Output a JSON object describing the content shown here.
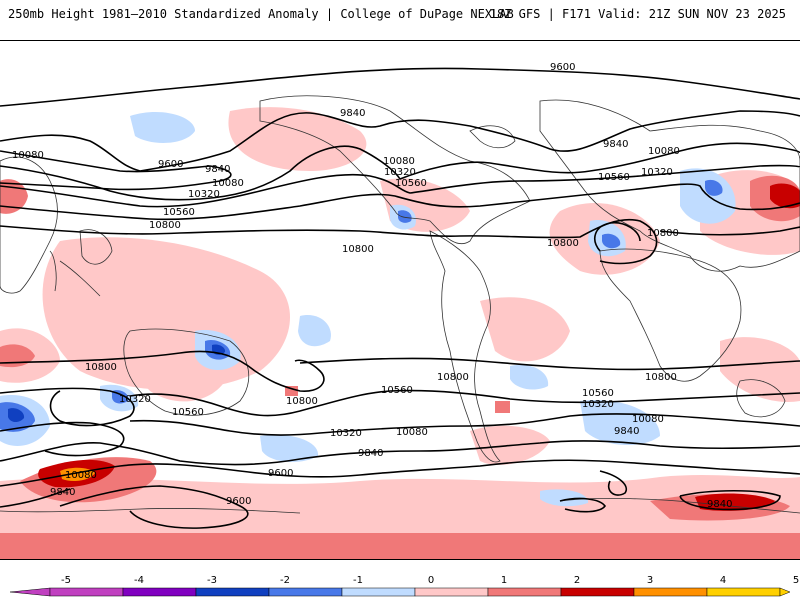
{
  "header": {
    "title": "250mb Height 1981–2010 Standardized Anomaly | College of DuPage NEXLAB",
    "run_info": "18Z GFS | F171 Valid: 21Z SUN NOV 23 2025"
  },
  "contour_labels": {
    "c9600_top": "9600",
    "c9840_nak": "9840",
    "c9840_eu": "9840",
    "c10080_eu": "10080",
    "c10320_eu": "10320",
    "c10560_atl": "10560",
    "c10800_atl": "10800",
    "c10800_afr": "10800",
    "c10080_pac_w": "10080",
    "c9600_pac": "9600",
    "c9840_pac": "9840",
    "c10080_pac": "10080",
    "c10320_pac": "10320",
    "c10560_pac": "10560",
    "c10800_pac": "10800",
    "c10080_na": "10080",
    "c10320_na": "10320",
    "c10560_na": "10560",
    "c10800_mid": "10800",
    "c10800_sio": "10800",
    "c10320_sio": "10320",
    "c10560_aus": "10560",
    "c10800_spac": "10800",
    "c10560_spac": "10560",
    "c10320_spac": "10320",
    "c10080_spac": "10080",
    "c10800_sa": "10800",
    "c10560_satl": "10560",
    "c10320_satl": "10320",
    "c10080_satl": "10080",
    "c9840_satl": "9840",
    "c10800_safr": "10800",
    "c9840_spac": "9840",
    "c9600_spac": "9600",
    "c9600_sant": "9600",
    "c10080_sio": "10080",
    "c9840_sio": "9840",
    "c9840_ant": "9840"
  },
  "legend": {
    "ticks": [
      "-5",
      "-4",
      "-3",
      "-2",
      "-1",
      "0",
      "1",
      "2",
      "3",
      "4",
      "5"
    ],
    "colors": [
      "#c040c0",
      "#8000c0",
      "#1040c0",
      "#4878e8",
      "#c0dcff",
      "#ffffff",
      "#ffc8c8",
      "#f07878",
      "#c80000",
      "#ff9000",
      "#ffd000"
    ]
  }
}
